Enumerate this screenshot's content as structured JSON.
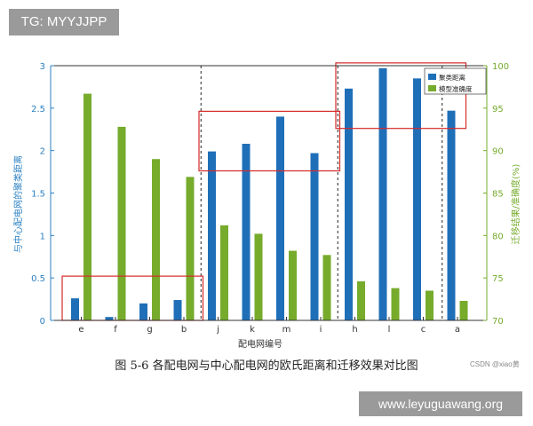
{
  "watermark_tag": "TG: MYYJJPP",
  "site_watermark": "www.leyuguawang.org",
  "caption": "图 5-6  各配电网与中心配电网的欧氏距离和迁移效果对比图",
  "credit": "CSDN @xiao黄",
  "chart_data": {
    "type": "bar",
    "title": "",
    "xlabel": "配电网编号",
    "ylabel_left": "与中心配电网的聚类距离",
    "ylabel_right": "迁移结果/准确度(%)",
    "categories": [
      "e",
      "f",
      "g",
      "b",
      "j",
      "k",
      "m",
      "i",
      "h",
      "l",
      "c",
      "a"
    ],
    "series": [
      {
        "name": "聚类距离",
        "axis": "left",
        "color": "#1f6fb8",
        "values": [
          0.26,
          0.04,
          0.2,
          0.24,
          1.99,
          2.08,
          2.4,
          1.97,
          2.73,
          2.97,
          2.85,
          2.47
        ]
      },
      {
        "name": "模型准确度",
        "axis": "right",
        "color": "#76ab2c",
        "values": [
          96.7,
          92.8,
          89.0,
          86.9,
          81.2,
          80.2,
          78.2,
          77.7,
          74.6,
          73.8,
          73.5,
          72.3
        ]
      }
    ],
    "ylim_left": [
      0,
      3
    ],
    "ylim_right": [
      70,
      100
    ],
    "yticks_left": [
      "0",
      "0.5",
      "1",
      "1.5",
      "2",
      "2.5",
      "3"
    ],
    "yticks_right": [
      "70",
      "75",
      "80",
      "85",
      "90",
      "95",
      "100"
    ],
    "group_dividers_after": [
      "b",
      "i"
    ],
    "highlight_groups": [
      [
        "e",
        "f",
        "g",
        "b"
      ],
      [
        "j",
        "k",
        "m",
        "i"
      ],
      [
        "h",
        "l",
        "c",
        "a"
      ]
    ],
    "legend_position": "top-right",
    "grid": false
  }
}
